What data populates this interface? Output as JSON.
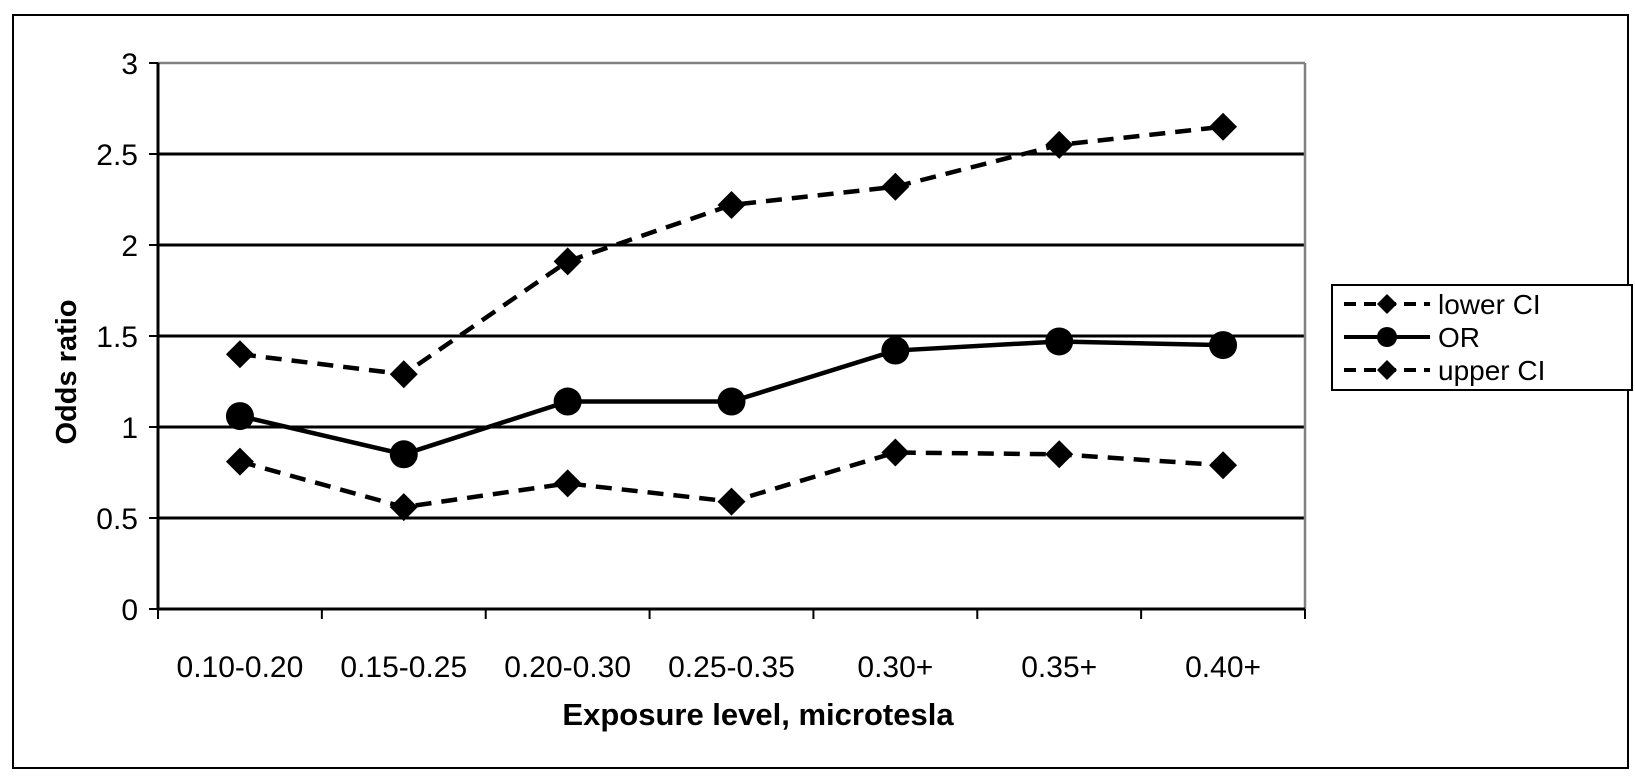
{
  "chart_data": {
    "type": "line",
    "categories": [
      "0.10-0.20",
      "0.15-0.25",
      "0.20-0.30",
      "0.25-0.35",
      "0.30+",
      "0.35+",
      "0.40+"
    ],
    "series": [
      {
        "name": "lower CI",
        "values": [
          0.81,
          0.56,
          0.69,
          0.59,
          0.86,
          0.85,
          0.79
        ],
        "marker": "diamond",
        "line": "dashed"
      },
      {
        "name": "OR",
        "values": [
          1.06,
          0.85,
          1.14,
          1.14,
          1.42,
          1.47,
          1.45
        ],
        "marker": "circle",
        "line": "solid"
      },
      {
        "name": "upper CI",
        "values": [
          1.4,
          1.29,
          1.91,
          2.22,
          2.32,
          2.55,
          2.65
        ],
        "marker": "diamond",
        "line": "dashed"
      }
    ],
    "xlabel": "Exposure level, microtesla",
    "ylabel": "Odds ratio",
    "ylim": [
      0,
      3
    ],
    "yticks": [
      "0",
      "0.5",
      "1",
      "1.5",
      "2",
      "2.5",
      "3"
    ],
    "grid": true,
    "legend_position": "right",
    "colors": {
      "line": "#000000",
      "plot_border": "#808080"
    }
  }
}
